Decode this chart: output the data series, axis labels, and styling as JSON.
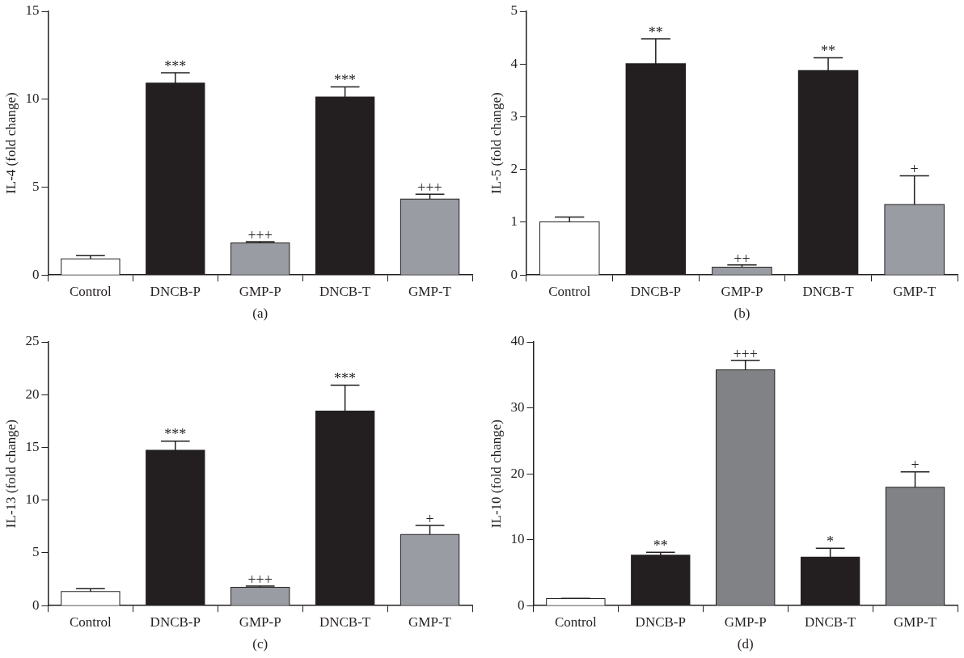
{
  "chart_data": [
    {
      "type": "bar",
      "xlabel": "(a)",
      "ylabel": "IL-4 (fold change)",
      "categories": [
        "Control",
        "DNCB-P",
        "GMP-P",
        "DNCB-T",
        "GMP-T"
      ],
      "values": [
        0.9,
        10.9,
        1.8,
        10.1,
        4.3
      ],
      "errors": [
        [
          0.9,
          1.1
        ],
        [
          10.9,
          11.5
        ],
        [
          1.8,
          1.9
        ],
        [
          10.1,
          10.7
        ],
        [
          4.3,
          4.6
        ]
      ],
      "colors": [
        "#ffffff",
        "#231f20",
        "#9a9ca3",
        "#231f20",
        "#9a9ca3"
      ],
      "ylim": [
        0,
        15
      ],
      "yticks": [
        0,
        5,
        10,
        15
      ],
      "grid": false,
      "annotations": [
        {
          "text": "***",
          "x": "DNCB-P",
          "y": 11.5
        },
        {
          "text": "+++",
          "x": "GMP-P",
          "y": 1.9
        },
        {
          "text": "***",
          "x": "DNCB-T",
          "y": 10.7
        },
        {
          "text": "+++",
          "x": "GMP-T",
          "y": 4.6
        }
      ]
    },
    {
      "type": "bar",
      "xlabel": "(b)",
      "ylabel": "IL-5 (fold change)",
      "categories": [
        "Control",
        "DNCB-P",
        "GMP-P",
        "DNCB-T",
        "GMP-T"
      ],
      "values": [
        1.0,
        4.0,
        0.14,
        3.87,
        1.33
      ],
      "errors": [
        [
          1.0,
          1.1
        ],
        [
          4.0,
          4.48
        ],
        [
          0.14,
          0.19
        ],
        [
          3.87,
          4.12
        ],
        [
          1.33,
          1.88
        ]
      ],
      "colors": [
        "#ffffff",
        "#231f20",
        "#9a9ca3",
        "#231f20",
        "#9a9ca3"
      ],
      "ylim": [
        0,
        5
      ],
      "yticks": [
        0,
        1,
        2,
        3,
        4,
        5
      ],
      "grid": false,
      "annotations": [
        {
          "text": "**",
          "x": "DNCB-P",
          "y": 4.48
        },
        {
          "text": "++",
          "x": "GMP-P",
          "y": 0.19
        },
        {
          "text": "**",
          "x": "DNCB-T",
          "y": 4.12
        },
        {
          "text": "+",
          "x": "GMP-T",
          "y": 1.88
        }
      ]
    },
    {
      "type": "bar",
      "xlabel": "(c)",
      "ylabel": "IL-13 (fold change)",
      "categories": [
        "Control",
        "DNCB-P",
        "GMP-P",
        "DNCB-T",
        "GMP-T"
      ],
      "values": [
        1.3,
        14.7,
        1.7,
        18.4,
        6.7
      ],
      "errors": [
        [
          1.3,
          1.6
        ],
        [
          14.7,
          15.6
        ],
        [
          1.7,
          1.85
        ],
        [
          18.4,
          20.9
        ],
        [
          6.7,
          7.6
        ]
      ],
      "colors": [
        "#ffffff",
        "#231f20",
        "#9a9ca3",
        "#231f20",
        "#9a9ca3"
      ],
      "ylim": [
        0,
        25
      ],
      "yticks": [
        0,
        5,
        10,
        15,
        20,
        25
      ],
      "grid": false,
      "annotations": [
        {
          "text": "***",
          "x": "DNCB-P",
          "y": 15.6
        },
        {
          "text": "+++",
          "x": "GMP-P",
          "y": 1.85
        },
        {
          "text": "***",
          "x": "DNCB-T",
          "y": 20.9
        },
        {
          "text": "+",
          "x": "GMP-T",
          "y": 7.6
        }
      ]
    },
    {
      "type": "bar",
      "xlabel": "(d)",
      "ylabel": "IL-10 (fold change)",
      "categories": [
        "Control",
        "DNCB-P",
        "GMP-P",
        "DNCB-T",
        "GMP-T"
      ],
      "values": [
        1.0,
        7.6,
        35.7,
        7.3,
        17.9
      ],
      "errors": [
        [
          1.0,
          1.1
        ],
        [
          7.6,
          8.1
        ],
        [
          35.7,
          37.2
        ],
        [
          7.3,
          8.7
        ],
        [
          17.9,
          20.3
        ]
      ],
      "colors": [
        "#ffffff",
        "#231f20",
        "#808285",
        "#231f20",
        "#808285"
      ],
      "ylim": [
        0,
        40
      ],
      "yticks": [
        0,
        10,
        20,
        30,
        40
      ],
      "grid": false,
      "annotations": [
        {
          "text": "**",
          "x": "DNCB-P",
          "y": 8.1
        },
        {
          "text": "+++",
          "x": "GMP-P",
          "y": 37.2
        },
        {
          "text": "*",
          "x": "DNCB-T",
          "y": 8.7
        },
        {
          "text": "+",
          "x": "GMP-T",
          "y": 20.3
        }
      ]
    }
  ]
}
